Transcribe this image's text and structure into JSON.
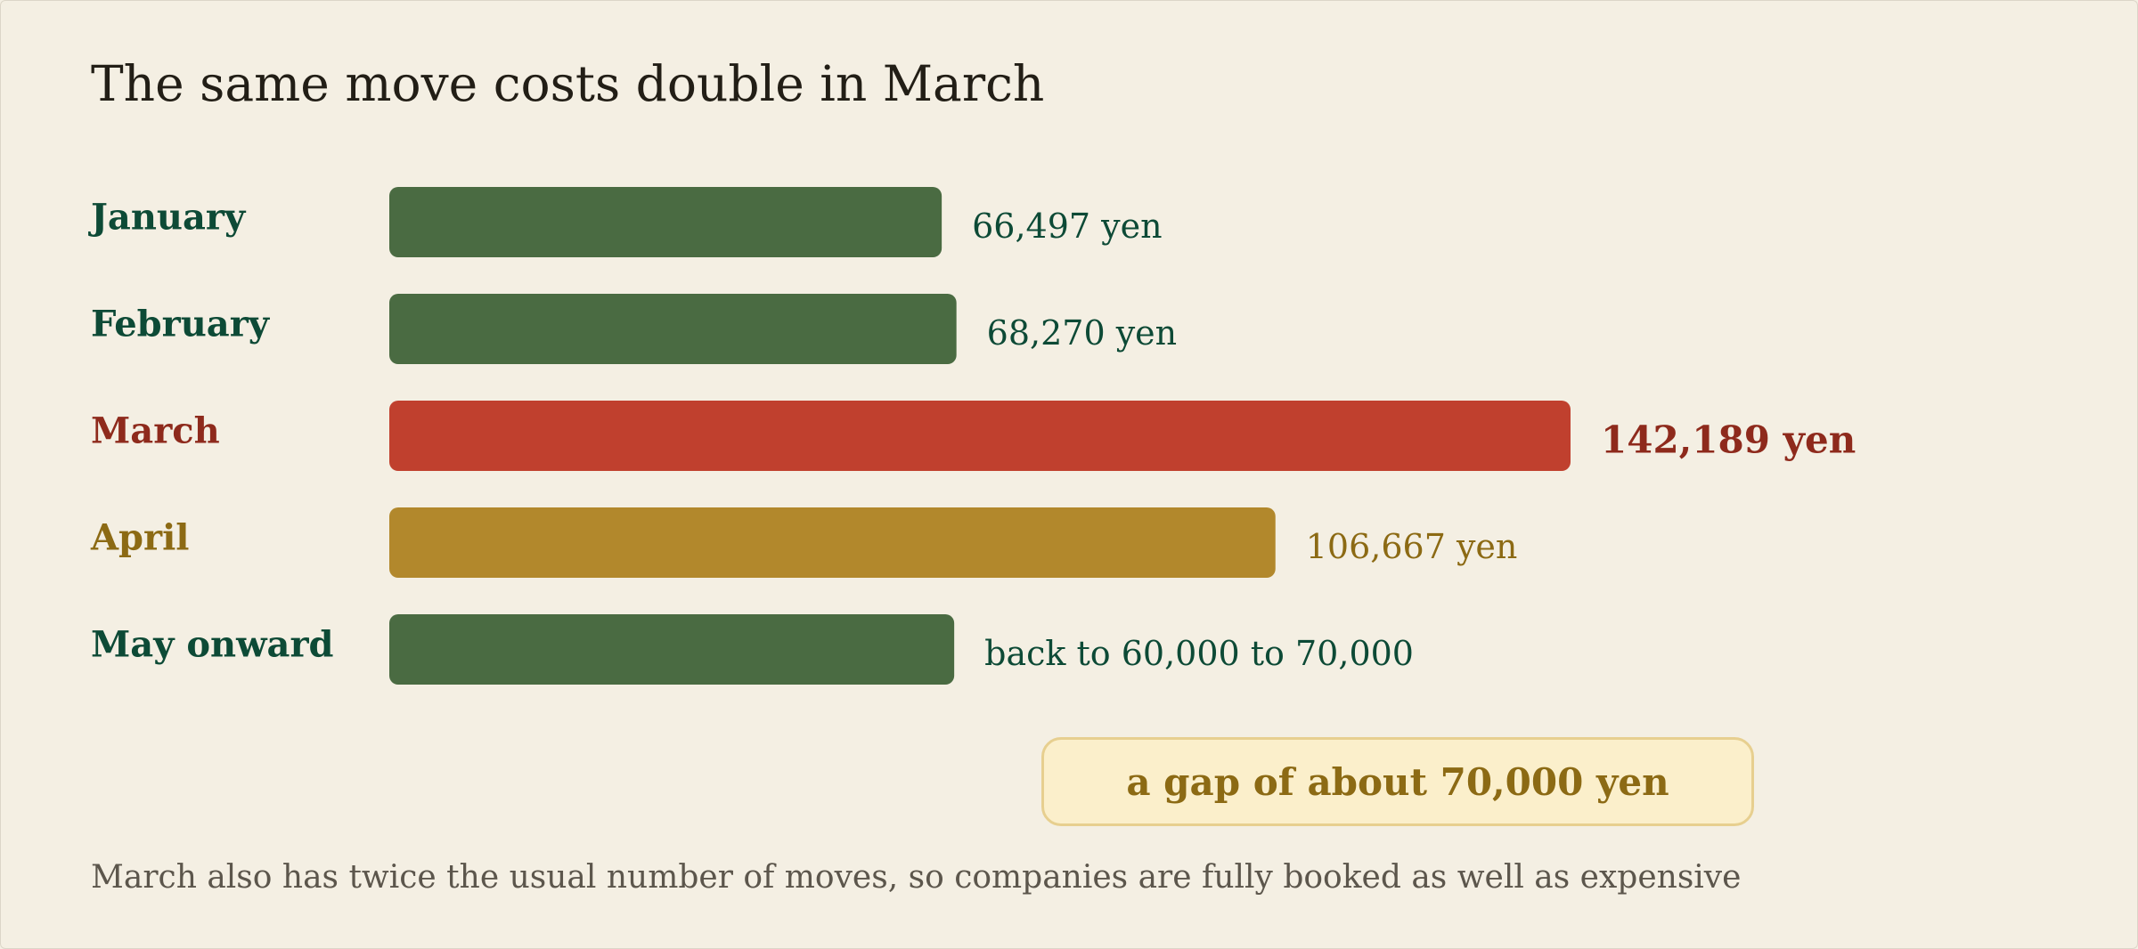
{
  "chart_data": {
    "type": "bar",
    "orientation": "horizontal",
    "title": "The same move costs double in March",
    "categories": [
      "January",
      "February",
      "March",
      "April",
      "May onward"
    ],
    "values": [
      66497,
      68270,
      142189,
      106667,
      68000
    ],
    "value_labels": [
      "66,497 yen",
      "68,270 yen",
      "142,189 yen",
      "106,667 yen",
      "back to 60,000 to 70,000"
    ],
    "unit": "yen",
    "colors": [
      "#4a6b42",
      "#4a6b42",
      "#c0402e",
      "#b2882c",
      "#4a6b42"
    ],
    "label_colors": [
      "#0d4a36",
      "#0d4a36",
      "#8e2a1c",
      "#8c6a14",
      "#0d4a36"
    ],
    "highlight_index": 2,
    "annotation": "a gap of about 70,000 yen",
    "footnote": "March also has twice the usual number of moves, so companies are fully booked as well as expensive",
    "grid": false,
    "legend": "none"
  }
}
